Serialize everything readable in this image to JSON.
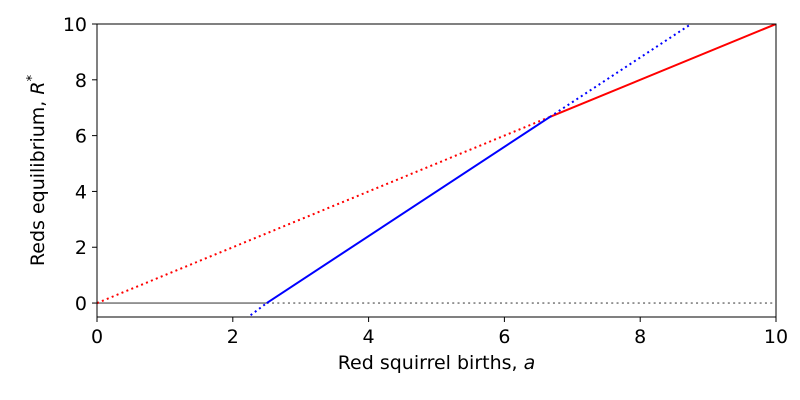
{
  "chart_data": {
    "type": "line",
    "title": "",
    "xlabel": {
      "text": "Red squirrel births, ",
      "symbol": "a"
    },
    "ylabel": {
      "text": "Reds equilibrium, ",
      "symbol": "R",
      "superscript": "*"
    },
    "xlim": [
      0,
      10
    ],
    "ylim": [
      -0.5,
      10
    ],
    "xticks": [
      "0",
      "2",
      "4",
      "6",
      "8",
      "10"
    ],
    "yticks": [
      "0",
      "2",
      "4",
      "6",
      "8",
      "10"
    ],
    "grid": false,
    "legend": "none",
    "series": [
      {
        "color": "#808080",
        "style": "solid",
        "x": [
          0,
          2.5
        ],
        "y": [
          0,
          0
        ]
      },
      {
        "color": "#808080",
        "style": "dotted",
        "x": [
          2.5,
          10
        ],
        "y": [
          0,
          0
        ]
      },
      {
        "color": "#ff0000",
        "style": "dotted",
        "x": [
          0,
          6.67
        ],
        "y": [
          0,
          6.67
        ]
      },
      {
        "color": "#ff0000",
        "style": "solid",
        "x": [
          6.67,
          10
        ],
        "y": [
          6.67,
          10
        ]
      },
      {
        "color": "#0000ff",
        "style": "dotted",
        "x": [
          2.2,
          2.5
        ],
        "y": [
          -0.55,
          0
        ]
      },
      {
        "color": "#0000ff",
        "style": "solid",
        "x": [
          2.5,
          6.67
        ],
        "y": [
          0,
          6.67
        ]
      },
      {
        "color": "#0000ff",
        "style": "dotted",
        "x": [
          6.67,
          8.75
        ],
        "y": [
          6.67,
          10
        ]
      }
    ]
  }
}
